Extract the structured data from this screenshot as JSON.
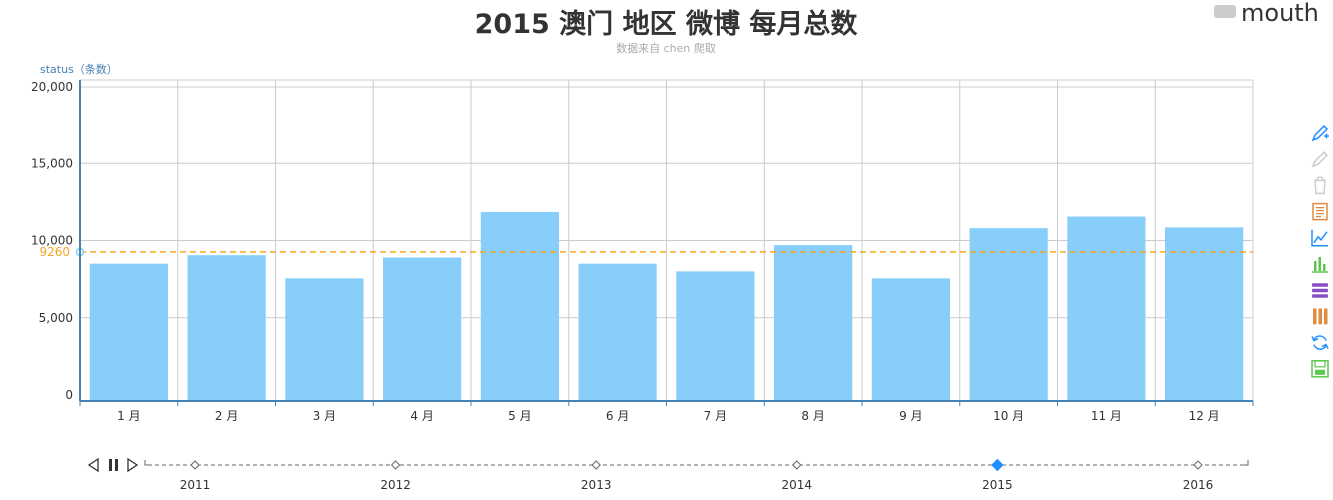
{
  "chart_data": {
    "type": "bar",
    "title": "2015 澳门 地区 微博 每月总数",
    "subtitle": "数据来自 chen 爬取",
    "ylabel": "status（条数）",
    "ylim": [
      0,
      20000
    ],
    "yticks": [
      "0",
      "5,000",
      "10,000",
      "15,000",
      "20,000"
    ],
    "ytick_values": [
      0,
      5000,
      10000,
      15000,
      20000
    ],
    "categories": [
      "1 月",
      "2 月",
      "3 月",
      "4 月",
      "5 月",
      "6 月",
      "7 月",
      "8 月",
      "9 月",
      "10 月",
      "11 月",
      "12 月"
    ],
    "series": [
      {
        "name": "mouth",
        "values": [
          8500,
          9050,
          7550,
          8900,
          11850,
          8500,
          8000,
          9700,
          7550,
          10800,
          11550,
          10850
        ]
      }
    ],
    "mark_line": {
      "value": 9260,
      "label": "9260",
      "color": "#f5a623"
    },
    "bar_color": "#87cefa",
    "grid": true,
    "legend_position": "top-right",
    "legend_color": "#cccccc"
  },
  "timeline": {
    "years": [
      "2011",
      "2012",
      "2013",
      "2014",
      "2015",
      "2016"
    ],
    "active_year": "2015",
    "active_color": "#1e90ff"
  },
  "toolbox": {
    "icons": [
      {
        "name": "mark-pen-icon",
        "color": "#1e90ff"
      },
      {
        "name": "mark-undo-icon",
        "color": "#cccccc"
      },
      {
        "name": "mark-clear-icon",
        "color": "#cccccc"
      },
      {
        "name": "data-view-icon",
        "color": "#e08b3e"
      },
      {
        "name": "line-chart-icon",
        "color": "#1e90ff"
      },
      {
        "name": "bar-chart-icon",
        "color": "#5cc64e"
      },
      {
        "name": "stack-icon",
        "color": "#8a4fc4"
      },
      {
        "name": "tiled-icon",
        "color": "#e08b3e"
      },
      {
        "name": "restore-icon",
        "color": "#1e90ff"
      },
      {
        "name": "save-image-icon",
        "color": "#5cc64e"
      }
    ]
  }
}
